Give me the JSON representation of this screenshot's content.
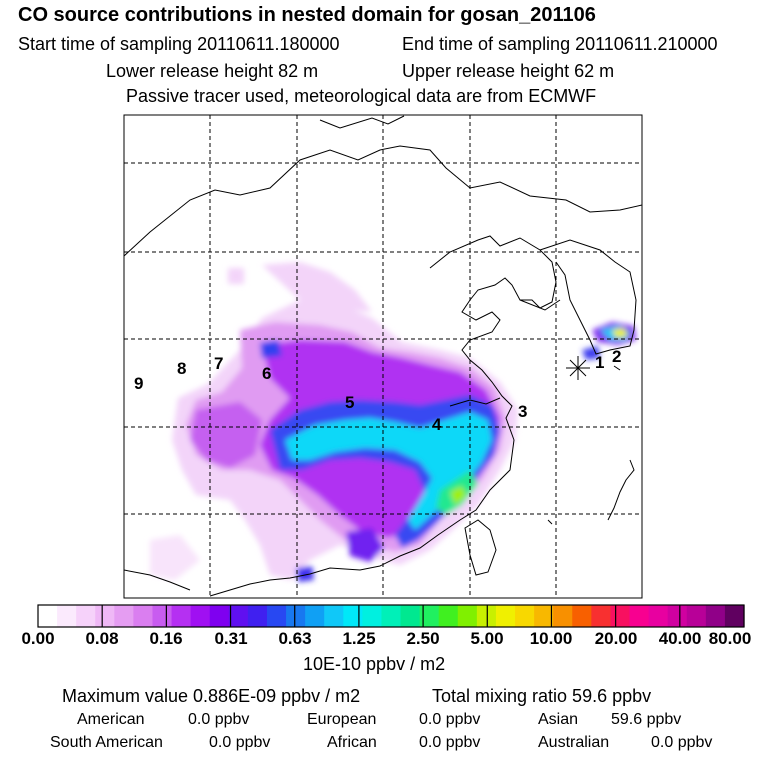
{
  "header": {
    "title": "CO  source contributions in nested domain for gosan_201106",
    "start": "Start time of sampling 20110611.180000",
    "end": "End time of sampling 20110611.210000",
    "lower": "Lower release height   82 m",
    "upper": "Upper release height   62 m",
    "note": "Passive tracer used, meteorological data are from ECMWF"
  },
  "map": {
    "region_labels": [
      "1",
      "2",
      "3",
      "4",
      "5",
      "6",
      "7",
      "8",
      "9"
    ]
  },
  "colorbar": {
    "ticks": [
      "0.00",
      "0.08",
      "0.16",
      "0.31",
      "0.63",
      "1.25",
      "2.50",
      "5.00",
      "10.00",
      "20.00",
      "40.00",
      "80.00"
    ],
    "units": "10E-10 ppbv / m2",
    "colors": [
      "#ffffff",
      "#fbeafd",
      "#f6d2fa",
      "#efb8f6",
      "#e59df2",
      "#da7ef0",
      "#c85cf0",
      "#b530f2",
      "#a010f2",
      "#7f00f0",
      "#6010f0",
      "#4020f0",
      "#2848f2",
      "#1878f0",
      "#10a0f4",
      "#10c8f8",
      "#00e8f8",
      "#00f0e0",
      "#00f0b8",
      "#00e890",
      "#20f060",
      "#40f020",
      "#80f000",
      "#c8f000",
      "#f0f000",
      "#f8d800",
      "#f8b800",
      "#f89000",
      "#f86000",
      "#f83030",
      "#f81060",
      "#f80090",
      "#e800a0",
      "#d000a0",
      "#b80098",
      "#900088",
      "#600060"
    ]
  },
  "summary": {
    "max_line": "Maximum value  0.886E-09 ppbv / m2",
    "total_line": "Total mixing ratio       59.6 ppbv",
    "sources": [
      {
        "name": "American",
        "value": "0.0 ppbv"
      },
      {
        "name": "European",
        "value": "0.0 ppbv"
      },
      {
        "name": "Asian",
        "value": "59.6 ppbv"
      },
      {
        "name": "South American",
        "value": "0.0 ppbv"
      },
      {
        "name": "African",
        "value": "0.0 ppbv"
      },
      {
        "name": "Australian",
        "value": "0.0 ppbv"
      }
    ]
  }
}
